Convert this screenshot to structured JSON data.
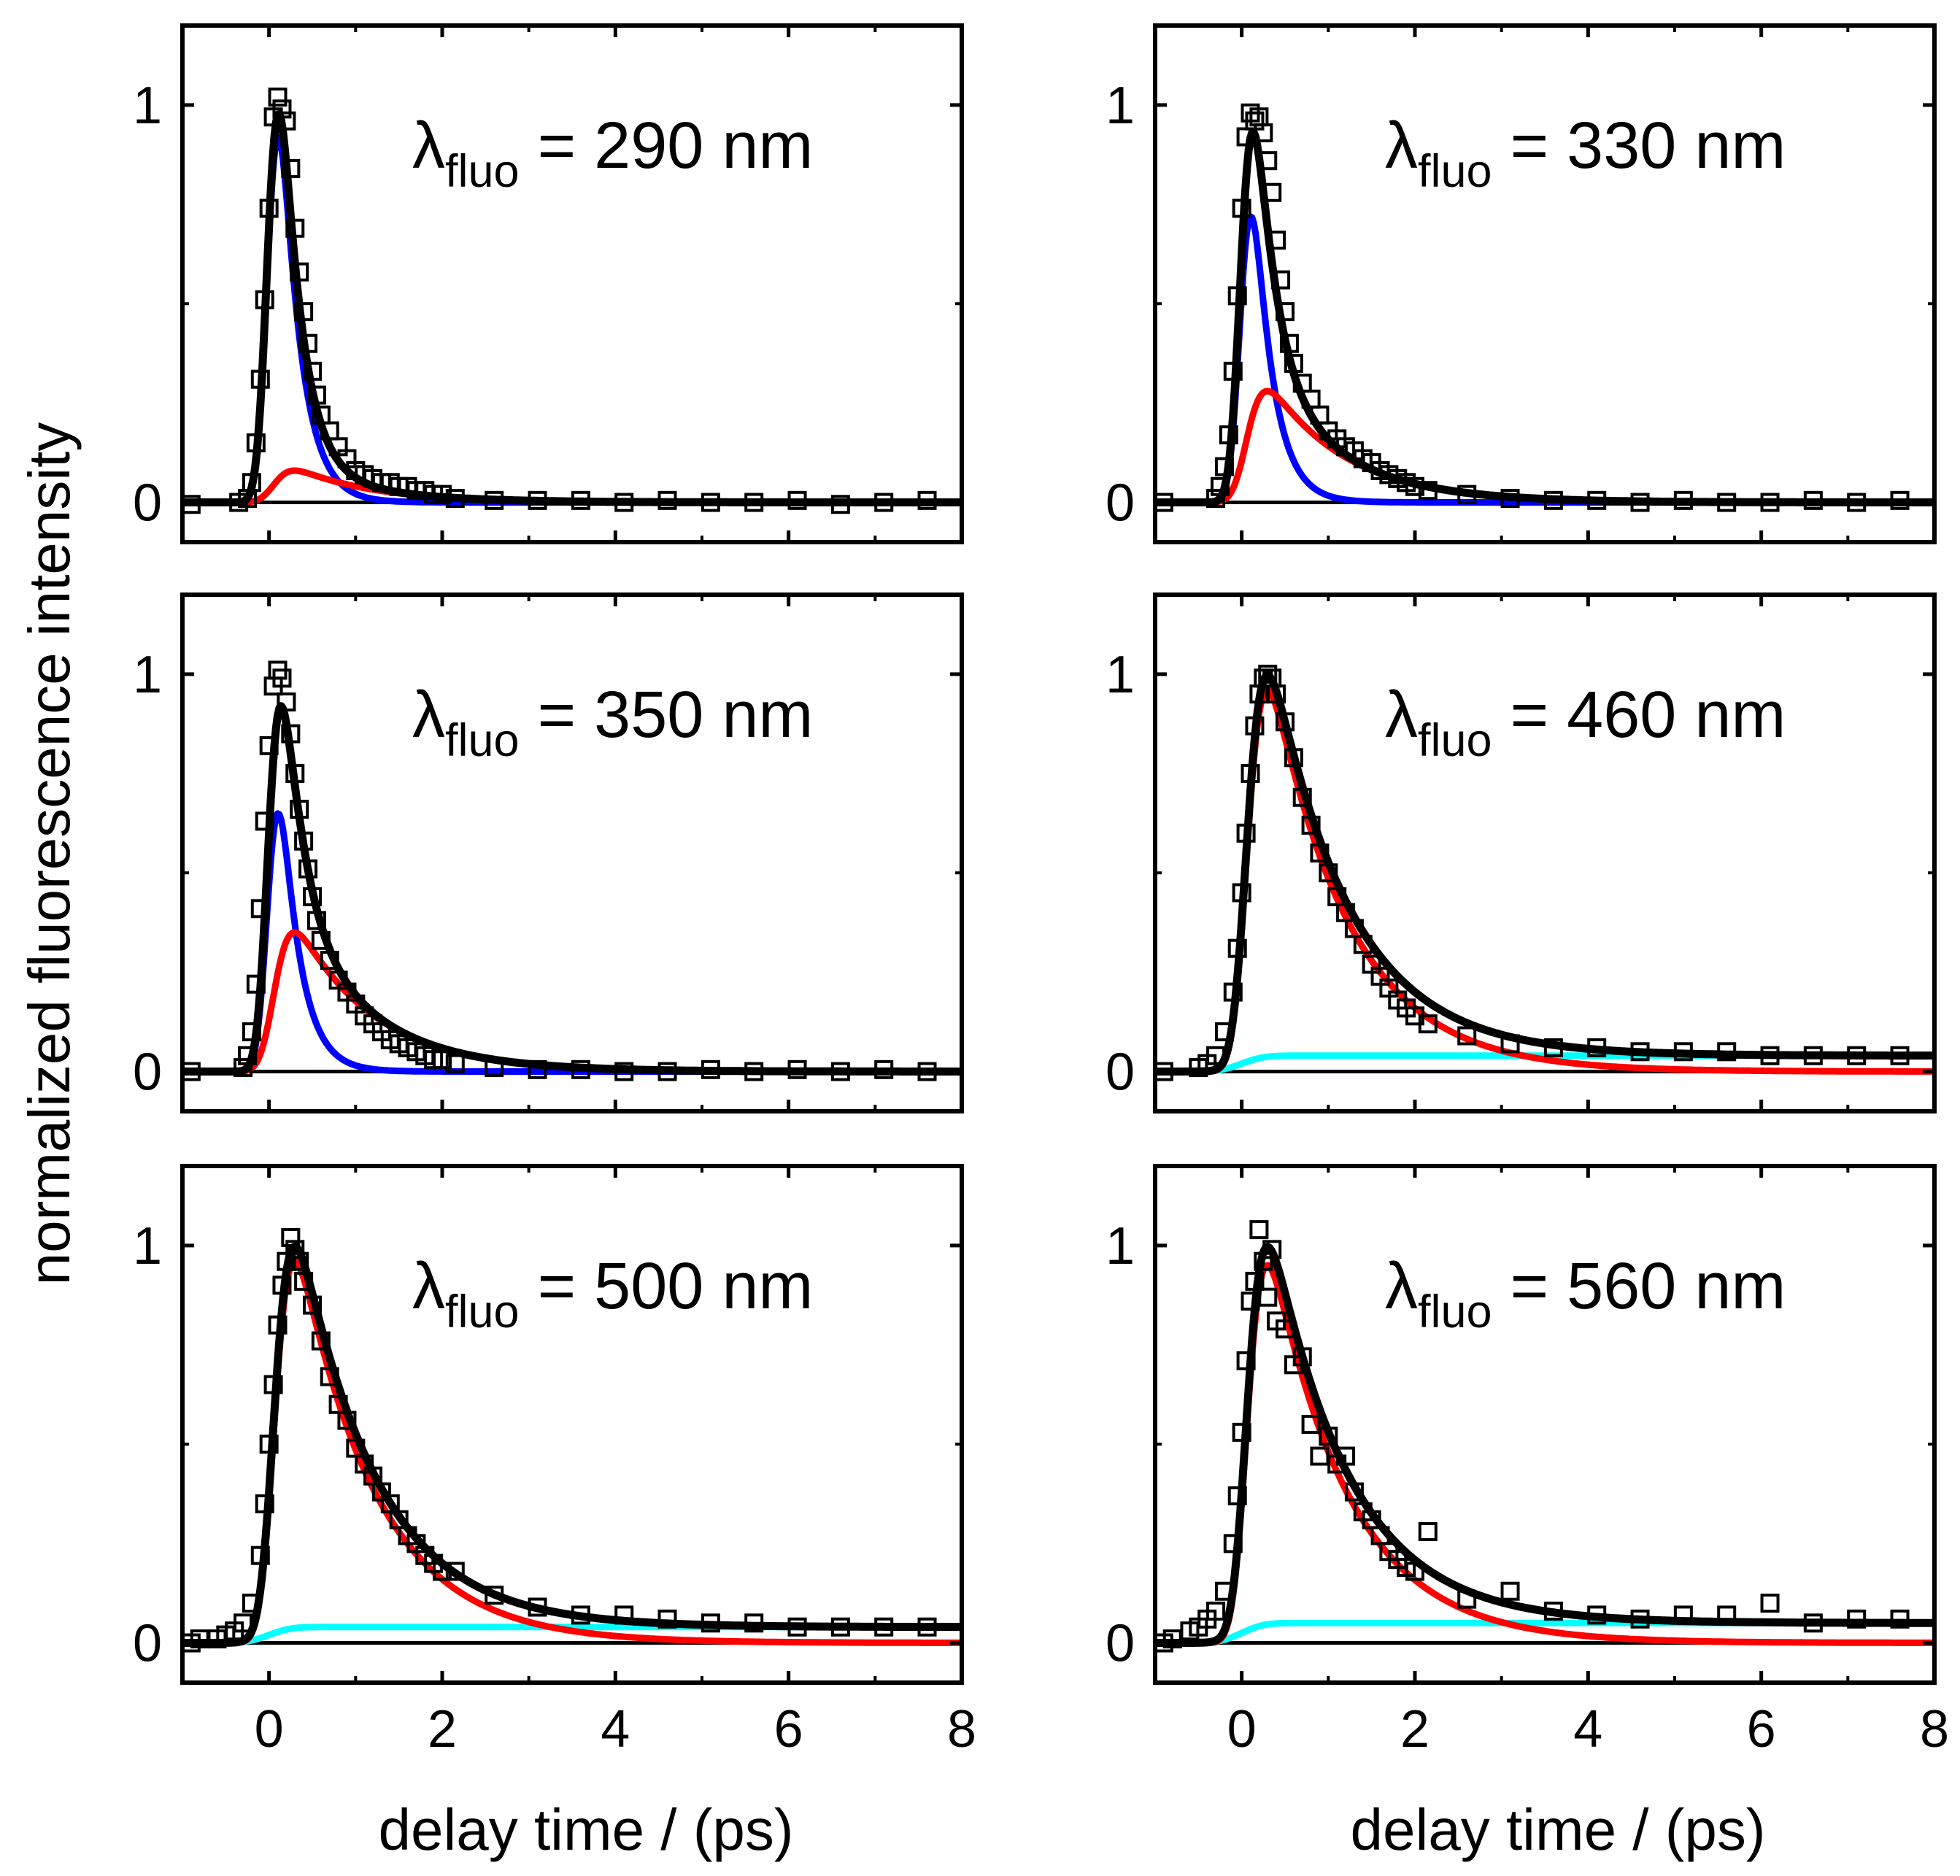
{
  "figure": {
    "ylabel": "normalized fluorescence intensity",
    "xlabel": "delay time / (ps)"
  },
  "colors": {
    "data": "#000000",
    "total_fit": "#000000",
    "blue_component": "#0000ff",
    "red_component": "#ff0000",
    "cyan_component": "#00ffff",
    "zero_line": "#000000"
  },
  "chart_data": [
    {
      "type": "scatter",
      "label": {
        "symbol": "λ",
        "sub": "fluo",
        "text": " = 290 nm"
      },
      "xlim": [
        -1,
        8
      ],
      "ylim": [
        -0.1,
        1.2
      ],
      "xticks": [
        "0",
        "2",
        "4",
        "6",
        "8"
      ],
      "yticks": [
        "0",
        "1"
      ],
      "fit_components": {
        "blue": 0.92,
        "red": 0.08,
        "cyan": 0.0
      },
      "series": [
        {
          "name": "measured",
          "x": [
            -0.9,
            -0.35,
            -0.25,
            -0.2,
            -0.15,
            -0.1,
            -0.05,
            0.0,
            0.05,
            0.1,
            0.15,
            0.2,
            0.25,
            0.3,
            0.35,
            0.4,
            0.45,
            0.5,
            0.55,
            0.6,
            0.7,
            0.8,
            0.9,
            1.0,
            1.1,
            1.2,
            1.3,
            1.4,
            1.5,
            1.6,
            1.7,
            1.8,
            1.9,
            2.0,
            2.15,
            2.6,
            3.1,
            3.6,
            4.1,
            4.6,
            5.1,
            5.6,
            6.1,
            6.6,
            7.1,
            7.6
          ],
          "y": [
            -0.005,
            0.0,
            0.01,
            0.05,
            0.15,
            0.31,
            0.51,
            0.74,
            0.97,
            1.02,
            0.99,
            0.96,
            0.84,
            0.69,
            0.58,
            0.48,
            0.4,
            0.33,
            0.27,
            0.22,
            0.18,
            0.14,
            0.11,
            0.08,
            0.07,
            0.06,
            0.05,
            0.05,
            0.04,
            0.04,
            0.03,
            0.03,
            0.02,
            0.02,
            0.01,
            0.005,
            0.005,
            0.005,
            0.0,
            0.005,
            0.0,
            0.0,
            0.005,
            -0.005,
            0.0,
            0.005
          ]
        }
      ]
    },
    {
      "type": "scatter",
      "label": {
        "symbol": "λ",
        "sub": "fluo",
        "text": " = 330 nm"
      },
      "xlim": [
        -1,
        8
      ],
      "ylim": [
        -0.1,
        1.2
      ],
      "xticks": [
        "0",
        "2",
        "4",
        "6",
        "8"
      ],
      "yticks": [
        "0",
        "1"
      ],
      "fit_components": {
        "blue": 0.72,
        "red": 0.28,
        "cyan": 0.0
      },
      "series": [
        {
          "name": "measured",
          "x": [
            -0.9,
            -0.3,
            -0.25,
            -0.2,
            -0.15,
            -0.1,
            -0.05,
            0.0,
            0.05,
            0.1,
            0.15,
            0.2,
            0.25,
            0.3,
            0.35,
            0.4,
            0.45,
            0.5,
            0.55,
            0.6,
            0.7,
            0.8,
            0.9,
            1.0,
            1.1,
            1.2,
            1.3,
            1.4,
            1.5,
            1.6,
            1.7,
            1.8,
            1.9,
            2.0,
            2.15,
            2.6,
            3.1,
            3.6,
            4.1,
            4.6,
            5.1,
            5.6,
            6.1,
            6.6,
            7.1,
            7.6
          ],
          "y": [
            0.0,
            0.01,
            0.04,
            0.09,
            0.17,
            0.33,
            0.52,
            0.74,
            0.92,
            0.98,
            0.96,
            0.97,
            0.93,
            0.86,
            0.78,
            0.66,
            0.56,
            0.48,
            0.4,
            0.35,
            0.3,
            0.26,
            0.22,
            0.18,
            0.16,
            0.14,
            0.13,
            0.11,
            0.1,
            0.08,
            0.07,
            0.06,
            0.05,
            0.04,
            0.03,
            0.02,
            0.01,
            0.005,
            0.005,
            0.0,
            0.005,
            0.0,
            0.0,
            0.005,
            0.0,
            0.005
          ]
        }
      ]
    },
    {
      "type": "scatter",
      "label": {
        "symbol": "λ",
        "sub": "fluo",
        "text": " = 350 nm"
      },
      "xlim": [
        -1,
        8
      ],
      "ylim": [
        -0.1,
        1.2
      ],
      "xticks": [
        "0",
        "2",
        "4",
        "6",
        "8"
      ],
      "yticks": [
        "0",
        "1"
      ],
      "fit_components": {
        "blue": 0.65,
        "red": 0.35,
        "cyan": 0.0
      },
      "series": [
        {
          "name": "measured",
          "x": [
            -0.9,
            -0.3,
            -0.25,
            -0.2,
            -0.15,
            -0.1,
            -0.05,
            0.0,
            0.05,
            0.1,
            0.15,
            0.2,
            0.25,
            0.3,
            0.35,
            0.4,
            0.45,
            0.5,
            0.55,
            0.6,
            0.7,
            0.8,
            0.9,
            1.0,
            1.1,
            1.2,
            1.3,
            1.4,
            1.5,
            1.6,
            1.7,
            1.8,
            1.9,
            2.0,
            2.15,
            2.6,
            3.1,
            3.6,
            4.1,
            4.6,
            5.1,
            5.6,
            6.1,
            6.6,
            7.1,
            7.6
          ],
          "y": [
            0.0,
            0.01,
            0.04,
            0.1,
            0.22,
            0.41,
            0.63,
            0.82,
            0.97,
            1.01,
            0.99,
            0.93,
            0.85,
            0.75,
            0.66,
            0.58,
            0.51,
            0.44,
            0.38,
            0.33,
            0.28,
            0.23,
            0.2,
            0.17,
            0.14,
            0.12,
            0.1,
            0.08,
            0.07,
            0.06,
            0.05,
            0.04,
            0.03,
            0.03,
            0.02,
            0.01,
            0.005,
            0.005,
            0.0,
            0.0,
            0.005,
            0.0,
            0.005,
            0.0,
            0.005,
            0.0
          ]
        }
      ]
    },
    {
      "type": "scatter",
      "label": {
        "symbol": "λ",
        "sub": "fluo",
        "text": " = 460 nm"
      },
      "xlim": [
        -1,
        8
      ],
      "ylim": [
        -0.1,
        1.2
      ],
      "xticks": [
        "0",
        "2",
        "4",
        "6",
        "8"
      ],
      "yticks": [
        "0",
        "1"
      ],
      "fit_components": {
        "blue": 0.0,
        "red": 0.96,
        "cyan": 0.04
      },
      "series": [
        {
          "name": "measured",
          "x": [
            -0.9,
            -0.5,
            -0.4,
            -0.3,
            -0.2,
            -0.1,
            -0.05,
            0.0,
            0.05,
            0.1,
            0.15,
            0.2,
            0.25,
            0.3,
            0.35,
            0.4,
            0.5,
            0.6,
            0.7,
            0.8,
            0.9,
            1.0,
            1.1,
            1.2,
            1.3,
            1.4,
            1.5,
            1.6,
            1.7,
            1.8,
            1.9,
            2.0,
            2.15,
            2.6,
            3.1,
            3.6,
            4.1,
            4.6,
            5.1,
            5.6,
            6.1,
            6.6,
            7.1,
            7.6
          ],
          "y": [
            0.0,
            0.01,
            0.02,
            0.04,
            0.1,
            0.2,
            0.31,
            0.45,
            0.6,
            0.75,
            0.87,
            0.95,
            0.99,
            1.0,
            0.99,
            0.95,
            0.88,
            0.79,
            0.69,
            0.62,
            0.55,
            0.5,
            0.44,
            0.4,
            0.36,
            0.32,
            0.27,
            0.24,
            0.21,
            0.18,
            0.16,
            0.14,
            0.12,
            0.09,
            0.07,
            0.06,
            0.06,
            0.05,
            0.05,
            0.05,
            0.04,
            0.04,
            0.04,
            0.04
          ]
        }
      ]
    },
    {
      "type": "scatter",
      "label": {
        "symbol": "λ",
        "sub": "fluo",
        "text": " = 500 nm"
      },
      "xlim": [
        -1,
        8
      ],
      "ylim": [
        -0.1,
        1.2
      ],
      "xticks": [
        "0",
        "2",
        "4",
        "6",
        "8"
      ],
      "yticks": [
        "0",
        "1"
      ],
      "fit_components": {
        "blue": 0.0,
        "red": 0.96,
        "cyan": 0.04
      },
      "series": [
        {
          "name": "measured",
          "x": [
            -0.9,
            -0.8,
            -0.6,
            -0.5,
            -0.4,
            -0.3,
            -0.2,
            -0.1,
            -0.05,
            0.0,
            0.05,
            0.1,
            0.15,
            0.2,
            0.25,
            0.3,
            0.35,
            0.4,
            0.5,
            0.6,
            0.7,
            0.8,
            0.9,
            1.0,
            1.1,
            1.2,
            1.3,
            1.4,
            1.5,
            1.6,
            1.7,
            1.8,
            1.9,
            2.0,
            2.15,
            2.6,
            3.1,
            3.6,
            4.1,
            4.6,
            5.1,
            5.6,
            6.1,
            6.6,
            7.1,
            7.6
          ],
          "y": [
            0.0,
            0.01,
            0.01,
            0.02,
            0.03,
            0.05,
            0.1,
            0.22,
            0.35,
            0.5,
            0.65,
            0.8,
            0.9,
            0.96,
            1.02,
            0.99,
            0.96,
            0.91,
            0.85,
            0.76,
            0.67,
            0.6,
            0.56,
            0.49,
            0.45,
            0.42,
            0.38,
            0.35,
            0.31,
            0.27,
            0.25,
            0.22,
            0.2,
            0.18,
            0.18,
            0.12,
            0.09,
            0.07,
            0.07,
            0.06,
            0.05,
            0.05,
            0.04,
            0.04,
            0.04,
            0.04
          ]
        }
      ]
    },
    {
      "type": "scatter",
      "label": {
        "symbol": "λ",
        "sub": "fluo",
        "text": " = 560 nm"
      },
      "xlim": [
        -1,
        8
      ],
      "ylim": [
        -0.1,
        1.2
      ],
      "xticks": [
        "0",
        "2",
        "4",
        "6",
        "8"
      ],
      "yticks": [
        "0",
        "1"
      ],
      "fit_components": {
        "blue": 0.0,
        "red": 0.95,
        "cyan": 0.05
      },
      "series": [
        {
          "name": "measured",
          "x": [
            -0.9,
            -0.8,
            -0.6,
            -0.5,
            -0.4,
            -0.3,
            -0.2,
            -0.1,
            -0.05,
            0.0,
            0.05,
            0.1,
            0.15,
            0.2,
            0.25,
            0.3,
            0.35,
            0.4,
            0.5,
            0.6,
            0.7,
            0.8,
            0.9,
            1.0,
            1.1,
            1.2,
            1.3,
            1.4,
            1.5,
            1.6,
            1.7,
            1.8,
            1.9,
            2.0,
            2.15,
            2.6,
            3.1,
            3.6,
            4.1,
            4.6,
            5.1,
            5.6,
            6.1,
            6.6,
            7.1,
            7.6
          ],
          "y": [
            0.0,
            0.01,
            0.03,
            0.04,
            0.06,
            0.08,
            0.13,
            0.25,
            0.37,
            0.53,
            0.71,
            0.86,
            0.91,
            1.04,
            0.96,
            0.87,
            0.99,
            0.81,
            0.79,
            0.7,
            0.72,
            0.55,
            0.47,
            0.52,
            0.45,
            0.47,
            0.38,
            0.33,
            0.31,
            0.27,
            0.23,
            0.21,
            0.19,
            0.18,
            0.28,
            0.11,
            0.13,
            0.08,
            0.07,
            0.06,
            0.07,
            0.07,
            0.1,
            0.05,
            0.06,
            0.06
          ]
        }
      ]
    }
  ]
}
